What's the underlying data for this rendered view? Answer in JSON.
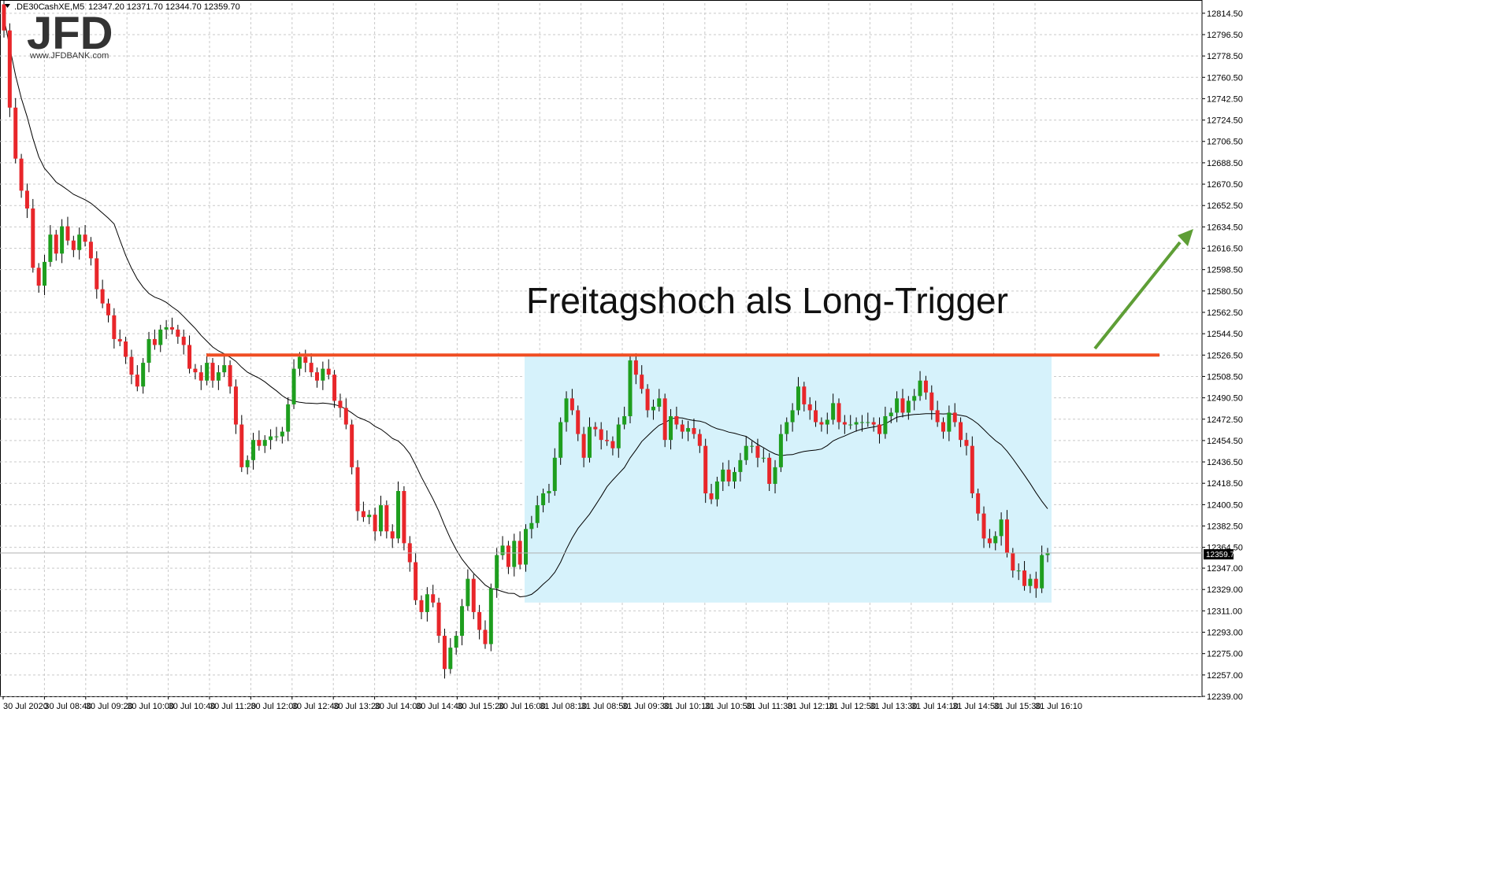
{
  "header": {
    "symbol": ".DE30CashXE,M5",
    "ohlc": "12347.20 12371.70 12344.70 12359.70"
  },
  "logo": {
    "text": "JFD",
    "url": "www.JFDBANK.com"
  },
  "annotation": {
    "text": "Freitagshoch als Long-Trigger"
  },
  "colors": {
    "bull": "#1e9e1e",
    "bear": "#e8262a",
    "ma": "#000000",
    "resistance": "#f04e23",
    "zone": "#d6f2fb",
    "arrow": "#5e9e36",
    "grid": "#c9c9c9"
  },
  "chart_data": {
    "type": "candlestick",
    "symbol": ".DE30CashXE,M5",
    "last_price": "12359.70",
    "ylim": [
      12239.0,
      12823.0
    ],
    "y_ticks": [
      "12814.50",
      "12796.50",
      "12778.50",
      "12760.50",
      "12742.50",
      "12724.50",
      "12706.50",
      "12688.50",
      "12670.50",
      "12652.50",
      "12634.50",
      "12616.50",
      "12598.50",
      "12580.50",
      "12562.50",
      "12544.50",
      "12526.50",
      "12508.50",
      "12490.50",
      "12472.50",
      "12454.50",
      "12436.50",
      "12418.50",
      "12400.50",
      "12382.50",
      "12364.50",
      "12347.00",
      "12329.00",
      "12311.00",
      "12293.00",
      "12275.00",
      "12257.00",
      "12239.00"
    ],
    "x_ticks": [
      "30 Jul 2020",
      "30 Jul 08:40",
      "30 Jul 09:20",
      "30 Jul 10:00",
      "30 Jul 10:40",
      "30 Jul 11:20",
      "30 Jul 12:00",
      "30 Jul 12:40",
      "30 Jul 13:20",
      "30 Jul 14:00",
      "30 Jul 14:40",
      "30 Jul 15:20",
      "30 Jul 16:00",
      "31 Jul 08:10",
      "31 Jul 08:50",
      "31 Jul 09:30",
      "31 Jul 10:10",
      "31 Jul 10:50",
      "31 Jul 11:30",
      "31 Jul 12:10",
      "31 Jul 12:50",
      "31 Jul 13:30",
      "31 Jul 14:10",
      "31 Jul 14:50",
      "31 Jul 15:30",
      "31 Jul 16:10"
    ],
    "resistance_level": 12526.5,
    "range_zone": {
      "low": 12318,
      "high": 12526.5
    },
    "close": [
      12800,
      12735,
      12692,
      12665,
      12650,
      12600,
      12585,
      12605,
      12628,
      12612,
      12635,
      12623,
      12615,
      12628,
      12622,
      12608,
      12582,
      12570,
      12560,
      12540,
      12538,
      12525,
      12510,
      12500,
      12520,
      12540,
      12535,
      12548,
      12550,
      12548,
      12542,
      12535,
      12515,
      12512,
      12505,
      12520,
      12505,
      12512,
      12518,
      12500,
      12468,
      12432,
      12438,
      12455,
      12450,
      12455,
      12458,
      12458,
      12462,
      12485,
      12515,
      12525,
      12520,
      12512,
      12505,
      12515,
      12510,
      12488,
      12482,
      12468,
      12432,
      12395,
      12390,
      12392,
      12378,
      12400,
      12378,
      12372,
      12412,
      12368,
      12352,
      12320,
      12310,
      12325,
      12318,
      12290,
      12262,
      12280,
      12290,
      12315,
      12338,
      12310,
      12295,
      12283,
      12330,
      12358,
      12366,
      12348,
      12370,
      12350,
      12380,
      12385,
      12400,
      12410,
      12412,
      12440,
      12470,
      12490,
      12480,
      12460,
      12440,
      12466,
      12464,
      12455,
      12454,
      12448,
      12468,
      12475,
      12522,
      12510,
      12498,
      12480,
      12483,
      12490,
      12455,
      12475,
      12468,
      12462,
      12465,
      12460,
      12450,
      12410,
      12405,
      12420,
      12430,
      12420,
      12428,
      12438,
      12450,
      12450,
      12440,
      12440,
      12418,
      12432,
      12460,
      12470,
      12480,
      12500,
      12485,
      12480,
      12470,
      12468,
      12472,
      12486,
      12470,
      12468,
      12468,
      12470,
      12470,
      12470,
      12468,
      12460,
      12475,
      12478,
      12490,
      12478,
      12488,
      12492,
      12505,
      12495,
      12480,
      12470,
      12462,
      12478,
      12470,
      12455,
      12450,
      12410,
      12393,
      12372,
      12368,
      12374,
      12388,
      12360,
      12345,
      12345,
      12332,
      12338,
      12330,
      12358,
      12360
    ],
    "moving_average_note": "black moving average line"
  }
}
